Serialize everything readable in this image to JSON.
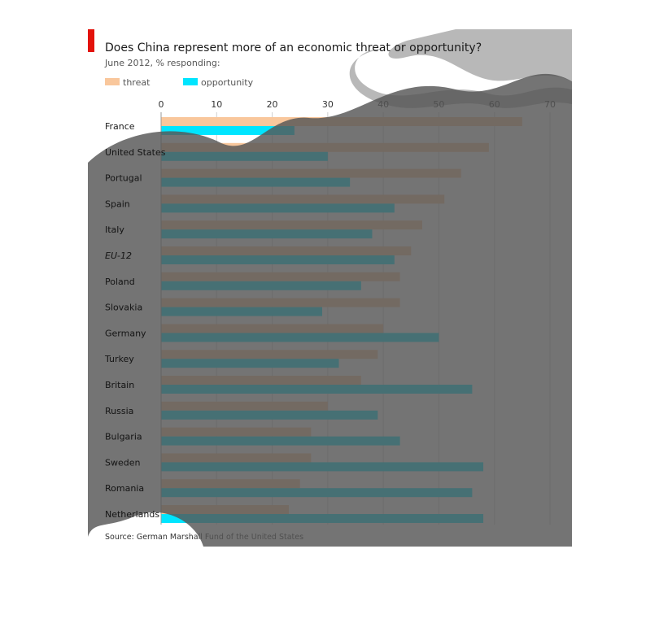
{
  "chart_data": {
    "type": "bar",
    "orientation": "horizontal",
    "title": "Does China represent more of an economic threat or opportunity?",
    "subtitle": "June 2012, % responding:",
    "categories": [
      "France",
      "United States",
      "Portugal",
      "Spain",
      "Italy",
      "EU-12",
      "Poland",
      "Slovakia",
      "Germany",
      "Turkey",
      "Britain",
      "Russia",
      "Bulgaria",
      "Sweden",
      "Romania",
      "Netherlands"
    ],
    "series": [
      {
        "name": "threat",
        "color": "#f9c79c",
        "values": [
          65,
          59,
          54,
          51,
          47,
          45,
          43,
          43,
          40,
          39,
          36,
          30,
          27,
          27,
          25,
          23
        ]
      },
      {
        "name": "opportunity",
        "color": "#00e5ff",
        "values": [
          24,
          30,
          34,
          42,
          38,
          42,
          36,
          29,
          50,
          32,
          56,
          39,
          43,
          58,
          56,
          58
        ]
      }
    ],
    "xlim": [
      0,
      70
    ],
    "xticks": [
      0,
      10,
      20,
      30,
      40,
      50,
      60,
      70
    ],
    "grid": true,
    "legend_position": "top-left",
    "source": "Source: German Marshall Fund of the United States",
    "colors": {
      "accent": "#e3120b",
      "overlay": "#555555",
      "cloud": "#b8b8b8"
    }
  }
}
